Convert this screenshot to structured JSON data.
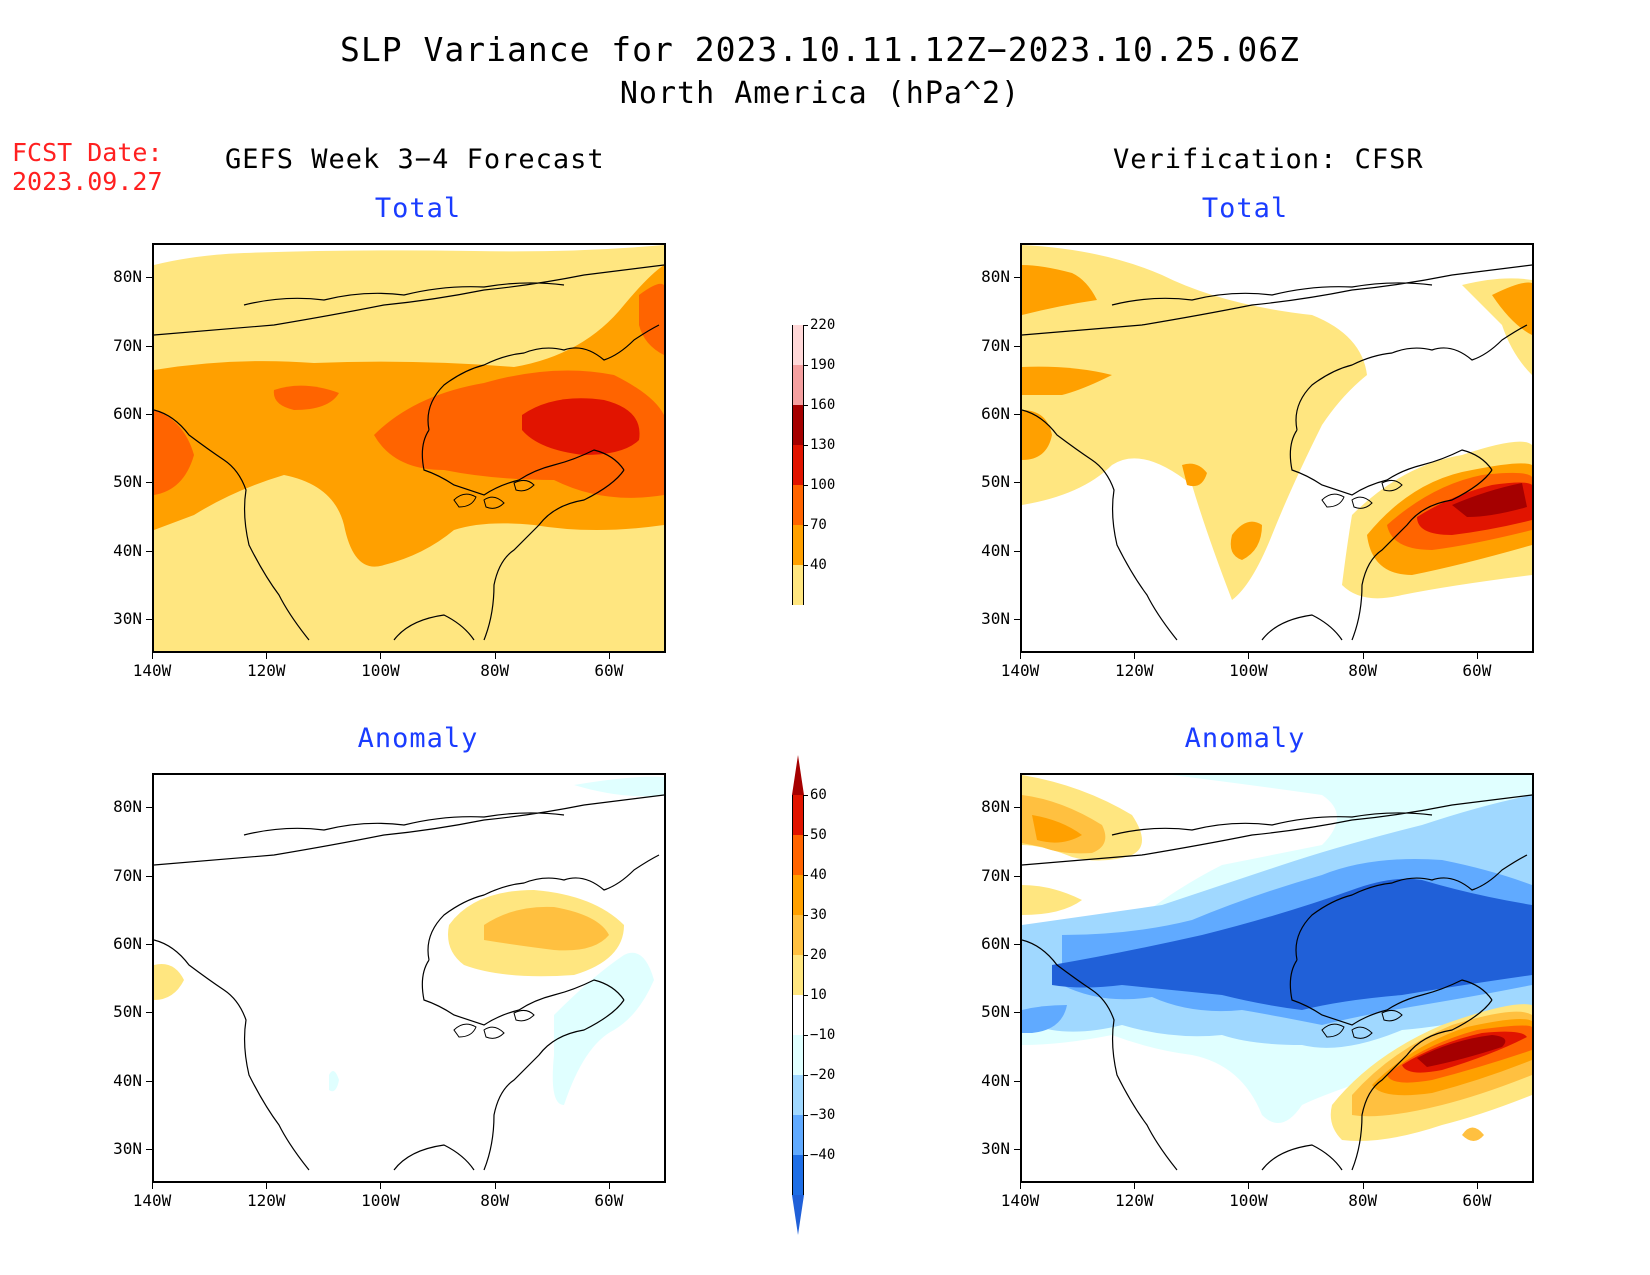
{
  "title": "SLP Variance for 2023.10.11.12Z−2023.10.25.06Z",
  "subtitle": "North America (hPa^2)",
  "fcst_date_label": "FCST Date:",
  "fcst_date_value": "2023.09.27",
  "left_column_title": "GEFS Week 3−4 Forecast",
  "right_column_title": "Verification: CFSR",
  "panel_titles": {
    "total": "Total",
    "anomaly": "Anomaly"
  },
  "axes": {
    "lat_ticks": [
      "80N",
      "70N",
      "60N",
      "50N",
      "40N",
      "30N"
    ],
    "lon_ticks": [
      "140W",
      "120W",
      "100W",
      "80W",
      "60W"
    ],
    "lon_range": [
      -140,
      -50
    ],
    "lat_range": [
      25,
      85
    ]
  },
  "total_colorbar": {
    "levels": [
      "40",
      "70",
      "100",
      "130",
      "160",
      "190",
      "220"
    ],
    "colors": [
      "#ffe680",
      "#ffa000",
      "#ff6400",
      "#e11400",
      "#a50000",
      "#f5a0a0",
      "#ffd8d8"
    ]
  },
  "anomaly_colorbar": {
    "levels": [
      "60",
      "50",
      "40",
      "30",
      "20",
      "10",
      "−10",
      "−20",
      "−30",
      "−40"
    ],
    "colors_pos": [
      "#a50000",
      "#e11400",
      "#ff6400",
      "#ffa000",
      "#ffc040",
      "#ffe680"
    ],
    "color_neutral": "#ffffff",
    "colors_neg": [
      "#e0ffff",
      "#a0d8ff",
      "#60aaff",
      "#1e6ee6",
      "#2060d8"
    ]
  },
  "chart_data": [
    {
      "type": "heatmap",
      "panel": "GEFS Week 3−4 Forecast — Total",
      "variable": "SLP variance",
      "units": "hPa^2",
      "features": [
        {
          "center": [
            -72,
            59
          ],
          "value": "130–160"
        },
        {
          "center": [
            -85,
            57
          ],
          "value": "100–130"
        },
        {
          "center": [
            -138,
            53
          ],
          "value": "100–130"
        },
        {
          "center": [
            -112,
            60
          ],
          "value": "100–130"
        },
        {
          "center": [
            -52,
            75
          ],
          "value": "100–130"
        }
      ]
    },
    {
      "type": "heatmap",
      "panel": "Verification: CFSR — Total",
      "variable": "SLP variance",
      "units": "hPa^2",
      "features": [
        {
          "center": [
            -60,
            47
          ],
          "value": "160–190"
        },
        {
          "center": [
            -63,
            45
          ],
          "value": "130–160"
        },
        {
          "center": [
            -138,
            57
          ],
          "value": "70–100"
        },
        {
          "center": [
            -130,
            80
          ],
          "value": "70–100"
        },
        {
          "center": [
            -55,
            76
          ],
          "value": "70–100"
        }
      ]
    },
    {
      "type": "heatmap",
      "panel": "GEFS Week 3−4 Forecast — Anomaly",
      "variable": "SLP variance anomaly",
      "units": "hPa^2",
      "features": [
        {
          "center": [
            -73,
            62
          ],
          "value": "20–30"
        },
        {
          "center": [
            -68,
            48
          ],
          "value": "−10 to −20"
        }
      ]
    },
    {
      "type": "heatmap",
      "panel": "Verification: CFSR — Anomaly",
      "variable": "SLP variance anomaly",
      "units": "hPa^2",
      "features": [
        {
          "center": [
            -60,
            44
          ],
          "value": "50–60"
        },
        {
          "center": [
            -95,
            55
          ],
          "value": "−30 to −40"
        },
        {
          "center": [
            -130,
            80
          ],
          "value": "20–30"
        },
        {
          "center": [
            -67,
            73
          ],
          "value": "−20 to −30"
        }
      ]
    }
  ]
}
